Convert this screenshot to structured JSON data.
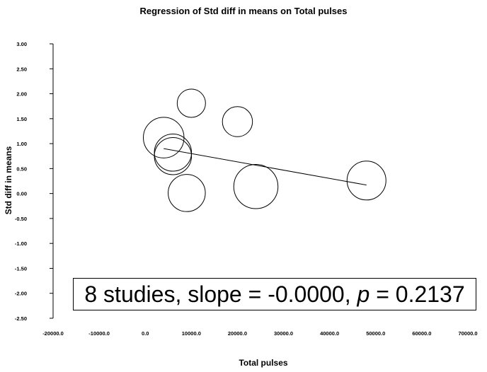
{
  "chart_data": {
    "type": "scatter",
    "title": "Regression of Std diff in means on Total pulses",
    "xlabel": "Total pulses",
    "ylabel": "Std diff in means",
    "xlim": [
      -20000,
      70000
    ],
    "ylim": [
      -2.5,
      3.0
    ],
    "x_ticks": [
      -20000,
      -10000,
      0,
      10000,
      20000,
      30000,
      40000,
      50000,
      60000,
      70000
    ],
    "x_tick_labels": [
      "-20000.0",
      "-10000.0",
      "0.0",
      "10000.0",
      "20000.0",
      "30000.0",
      "40000.0",
      "50000.0",
      "60000.0",
      "70000.0"
    ],
    "y_ticks": [
      3.0,
      2.5,
      2.0,
      1.5,
      1.0,
      0.5,
      0.0,
      -0.5,
      -1.0,
      -1.5,
      -2.0,
      -2.5
    ],
    "y_tick_labels": [
      "3.00",
      "2.50",
      "2.00",
      "1.50",
      "1.00",
      "0.50",
      "0.00",
      "-0.50",
      "-1.00",
      "-1.50",
      "-2.00",
      "-2.50"
    ],
    "grid": false,
    "points": [
      {
        "x": 4000,
        "y": 1.12,
        "weight": 1.15
      },
      {
        "x": 10000,
        "y": 1.81,
        "weight": 0.8
      },
      {
        "x": 20000,
        "y": 1.44,
        "weight": 0.85
      },
      {
        "x": 6000,
        "y": 0.82,
        "weight": 1.05
      },
      {
        "x": 6000,
        "y": 0.75,
        "weight": 1.05
      },
      {
        "x": 9000,
        "y": 0.01,
        "weight": 1.05
      },
      {
        "x": 24000,
        "y": 0.14,
        "weight": 1.25
      },
      {
        "x": 48000,
        "y": 0.26,
        "weight": 1.1
      }
    ],
    "regression_line": {
      "x_start": 4000,
      "y_start": 0.9,
      "x_end": 48000,
      "y_end": 0.17
    },
    "annotation": {
      "prefix": "8 studies, slope = -0.0000, ",
      "p_symbol": "p",
      "suffix": " = 0.2137"
    }
  }
}
